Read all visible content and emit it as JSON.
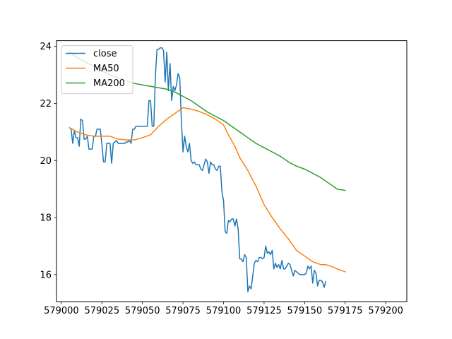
{
  "chart_data": {
    "type": "line",
    "title": "",
    "xlabel": "",
    "ylabel": "",
    "xlim": [
      578997,
      579213
    ],
    "ylim": [
      15.05,
      24.2
    ],
    "grid": false,
    "legend_position": "top-left",
    "x_ticks": [
      579000,
      579025,
      579050,
      579075,
      579100,
      579125,
      579150,
      579175,
      579200
    ],
    "y_ticks": [
      16,
      18,
      20,
      22,
      24
    ],
    "series": [
      {
        "name": "close",
        "color": "#1f77b4",
        "points": [
          [
            579005,
            21.15
          ],
          [
            579006,
            21.1
          ],
          [
            579007,
            20.6
          ],
          [
            579008,
            21.05
          ],
          [
            579009,
            20.8
          ],
          [
            579010,
            20.8
          ],
          [
            579011,
            20.5
          ],
          [
            579012,
            21.45
          ],
          [
            579013,
            21.4
          ],
          [
            579014,
            20.75
          ],
          [
            579015,
            20.75
          ],
          [
            579016,
            20.85
          ],
          [
            579017,
            20.4
          ],
          [
            579018,
            20.4
          ],
          [
            579019,
            20.4
          ],
          [
            579020,
            20.85
          ],
          [
            579021,
            20.85
          ],
          [
            579022,
            21.1
          ],
          [
            579023,
            21.1
          ],
          [
            579024,
            21.1
          ],
          [
            579025,
            20.55
          ],
          [
            579026,
            19.95
          ],
          [
            579027,
            19.95
          ],
          [
            579028,
            20.6
          ],
          [
            579029,
            20.6
          ],
          [
            579030,
            20.6
          ],
          [
            579031,
            19.9
          ],
          [
            579032,
            20.6
          ],
          [
            579033,
            20.65
          ],
          [
            579034,
            20.7
          ],
          [
            579035,
            20.6
          ],
          [
            579036,
            20.6
          ],
          [
            579037,
            20.6
          ],
          [
            579038,
            20.6
          ],
          [
            579039,
            20.6
          ],
          [
            579040,
            20.65
          ],
          [
            579041,
            20.65
          ],
          [
            579042,
            20.7
          ],
          [
            579043,
            20.6
          ],
          [
            579044,
            21.1
          ],
          [
            579045,
            21.1
          ],
          [
            579046,
            21.2
          ],
          [
            579047,
            21.2
          ],
          [
            579048,
            21.2
          ],
          [
            579049,
            21.2
          ],
          [
            579050,
            21.2
          ],
          [
            579051,
            21.2
          ],
          [
            579052,
            21.2
          ],
          [
            579053,
            21.2
          ],
          [
            579054,
            22.1
          ],
          [
            579055,
            22.1
          ],
          [
            579056,
            21.2
          ],
          [
            579057,
            21.2
          ],
          [
            579058,
            23.0
          ],
          [
            579059,
            23.9
          ],
          [
            579060,
            23.9
          ],
          [
            579061,
            23.95
          ],
          [
            579062,
            23.95
          ],
          [
            579063,
            23.85
          ],
          [
            579064,
            22.75
          ],
          [
            579065,
            23.8
          ],
          [
            579066,
            22.45
          ],
          [
            579067,
            23.4
          ],
          [
            579068,
            22.1
          ],
          [
            579069,
            22.6
          ],
          [
            579070,
            22.45
          ],
          [
            579071,
            22.65
          ],
          [
            579072,
            23.05
          ],
          [
            579073,
            22.9
          ],
          [
            579074,
            21.4
          ],
          [
            579075,
            20.3
          ],
          [
            579076,
            20.85
          ],
          [
            579077,
            20.5
          ],
          [
            579078,
            20.3
          ],
          [
            579079,
            20.6
          ],
          [
            579080,
            20.0
          ],
          [
            579081,
            19.9
          ],
          [
            579082,
            19.95
          ],
          [
            579083,
            19.85
          ],
          [
            579084,
            19.85
          ],
          [
            579085,
            19.85
          ],
          [
            579086,
            19.7
          ],
          [
            579087,
            19.65
          ],
          [
            579088,
            19.85
          ],
          [
            579089,
            20.05
          ],
          [
            579090,
            19.95
          ],
          [
            579091,
            19.55
          ],
          [
            579092,
            19.95
          ],
          [
            579093,
            19.85
          ],
          [
            579094,
            19.85
          ],
          [
            579095,
            19.7
          ],
          [
            579096,
            19.65
          ],
          [
            579097,
            19.8
          ],
          [
            579098,
            19.8
          ],
          [
            579099,
            18.9
          ],
          [
            579100,
            18.6
          ],
          [
            579101,
            17.5
          ],
          [
            579102,
            17.45
          ],
          [
            579103,
            17.9
          ],
          [
            579104,
            17.85
          ],
          [
            579105,
            17.95
          ],
          [
            579106,
            17.95
          ],
          [
            579107,
            17.7
          ],
          [
            579108,
            17.95
          ],
          [
            579109,
            17.6
          ],
          [
            579110,
            16.55
          ],
          [
            579111,
            16.55
          ],
          [
            579112,
            16.45
          ],
          [
            579113,
            16.7
          ],
          [
            579114,
            16.6
          ],
          [
            579115,
            15.4
          ],
          [
            579116,
            15.6
          ],
          [
            579117,
            15.5
          ],
          [
            579118,
            15.95
          ],
          [
            579119,
            16.4
          ],
          [
            579120,
            16.5
          ],
          [
            579121,
            16.45
          ],
          [
            579122,
            16.6
          ],
          [
            579123,
            16.6
          ],
          [
            579124,
            16.55
          ],
          [
            579125,
            16.6
          ],
          [
            579126,
            17.0
          ],
          [
            579127,
            16.75
          ],
          [
            579128,
            16.8
          ],
          [
            579129,
            16.7
          ],
          [
            579130,
            16.85
          ],
          [
            579131,
            16.2
          ],
          [
            579132,
            16.4
          ],
          [
            579133,
            16.25
          ],
          [
            579134,
            16.35
          ],
          [
            579135,
            16.2
          ],
          [
            579136,
            16.5
          ],
          [
            579137,
            16.2
          ],
          [
            579138,
            16.2
          ],
          [
            579139,
            16.3
          ],
          [
            579140,
            16.4
          ],
          [
            579141,
            16.35
          ],
          [
            579142,
            16.15
          ],
          [
            579143,
            15.95
          ],
          [
            579144,
            16.15
          ],
          [
            579145,
            16.1
          ],
          [
            579146,
            16.05
          ],
          [
            579147,
            16.0
          ],
          [
            579148,
            16.0
          ],
          [
            579149,
            16.0
          ],
          [
            579150,
            16.0
          ],
          [
            579151,
            16.05
          ],
          [
            579152,
            16.3
          ],
          [
            579153,
            16.2
          ],
          [
            579154,
            16.3
          ],
          [
            579155,
            15.7
          ],
          [
            579156,
            16.15
          ],
          [
            579157,
            16.05
          ],
          [
            579158,
            15.6
          ],
          [
            579159,
            15.8
          ],
          [
            579160,
            15.8
          ],
          [
            579161,
            15.75
          ],
          [
            579162,
            15.55
          ],
          [
            579163,
            15.75
          ]
        ]
      },
      {
        "name": "MA50",
        "color": "#ff7f0e",
        "points": [
          [
            579005,
            21.15
          ],
          [
            579010,
            21.0
          ],
          [
            579015,
            20.9
          ],
          [
            579020,
            20.85
          ],
          [
            579025,
            20.85
          ],
          [
            579030,
            20.85
          ],
          [
            579035,
            20.75
          ],
          [
            579040,
            20.72
          ],
          [
            579045,
            20.72
          ],
          [
            579050,
            20.8
          ],
          [
            579055,
            20.9
          ],
          [
            579060,
            21.2
          ],
          [
            579065,
            21.45
          ],
          [
            579070,
            21.65
          ],
          [
            579075,
            21.85
          ],
          [
            579080,
            21.8
          ],
          [
            579085,
            21.72
          ],
          [
            579090,
            21.6
          ],
          [
            579095,
            21.45
          ],
          [
            579100,
            21.25
          ],
          [
            579103,
            20.9
          ],
          [
            579107,
            20.5
          ],
          [
            579110,
            20.1
          ],
          [
            579115,
            19.65
          ],
          [
            579120,
            19.1
          ],
          [
            579125,
            18.45
          ],
          [
            579130,
            18.0
          ],
          [
            579135,
            17.6
          ],
          [
            579140,
            17.25
          ],
          [
            579145,
            16.85
          ],
          [
            579150,
            16.65
          ],
          [
            579155,
            16.45
          ],
          [
            579160,
            16.35
          ],
          [
            579163,
            16.35
          ],
          [
            579166,
            16.3
          ],
          [
            579170,
            16.2
          ],
          [
            579175,
            16.1
          ]
        ]
      },
      {
        "name": "MA200",
        "color": "#2ca02c",
        "points": [
          [
            579005,
            23.8
          ],
          [
            579010,
            23.6
          ],
          [
            579015,
            23.45
          ],
          [
            579020,
            23.3
          ],
          [
            579025,
            23.15
          ],
          [
            579030,
            23.0
          ],
          [
            579035,
            22.9
          ],
          [
            579040,
            22.8
          ],
          [
            579045,
            22.7
          ],
          [
            579050,
            22.65
          ],
          [
            579055,
            22.6
          ],
          [
            579060,
            22.55
          ],
          [
            579065,
            22.5
          ],
          [
            579070,
            22.4
          ],
          [
            579075,
            22.25
          ],
          [
            579080,
            22.1
          ],
          [
            579085,
            21.9
          ],
          [
            579090,
            21.7
          ],
          [
            579095,
            21.55
          ],
          [
            579100,
            21.4
          ],
          [
            579105,
            21.2
          ],
          [
            579110,
            21.0
          ],
          [
            579115,
            20.8
          ],
          [
            579120,
            20.6
          ],
          [
            579125,
            20.45
          ],
          [
            579130,
            20.3
          ],
          [
            579135,
            20.15
          ],
          [
            579140,
            19.95
          ],
          [
            579145,
            19.8
          ],
          [
            579150,
            19.7
          ],
          [
            579155,
            19.55
          ],
          [
            579160,
            19.4
          ],
          [
            579165,
            19.2
          ],
          [
            579170,
            19.0
          ],
          [
            579175,
            18.95
          ]
        ]
      }
    ]
  }
}
